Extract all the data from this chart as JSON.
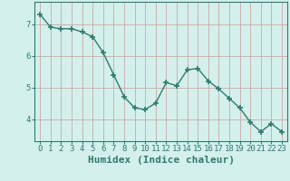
{
  "xlabel": "Humidex (Indice chaleur)",
  "x": [
    0,
    1,
    2,
    3,
    4,
    5,
    6,
    7,
    8,
    9,
    10,
    11,
    12,
    13,
    14,
    15,
    16,
    17,
    18,
    19,
    20,
    21,
    22,
    23
  ],
  "y": [
    7.3,
    6.9,
    6.85,
    6.85,
    6.75,
    6.6,
    6.1,
    5.4,
    4.7,
    4.35,
    4.3,
    4.5,
    5.15,
    5.05,
    5.55,
    5.6,
    5.2,
    4.95,
    4.65,
    4.35,
    3.9,
    3.6,
    3.85,
    3.6
  ],
  "line_color": "#2e7b6e",
  "marker": "+",
  "marker_size": 5,
  "bg_color": "#d4f0ec",
  "grid_color": "#c8a8a8",
  "axes_color": "#2e7b6e",
  "ylim": [
    3.3,
    7.7
  ],
  "yticks": [
    4,
    5,
    6,
    7
  ],
  "xticks": [
    0,
    1,
    2,
    3,
    4,
    5,
    6,
    7,
    8,
    9,
    10,
    11,
    12,
    13,
    14,
    15,
    16,
    17,
    18,
    19,
    20,
    21,
    22,
    23
  ],
  "tick_fontsize": 6.5,
  "label_fontsize": 8.0
}
